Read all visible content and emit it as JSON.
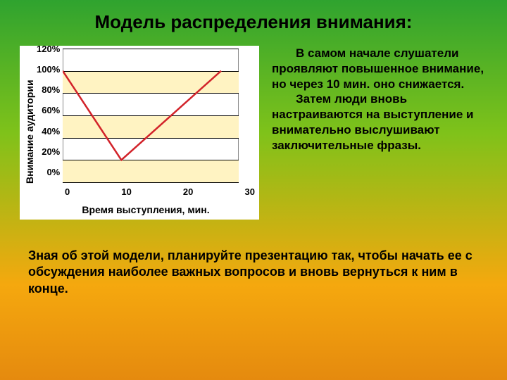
{
  "background": {
    "gradient_stops": [
      "#2fa32f",
      "#7fc21a",
      "#f5a80e",
      "#e58a0e"
    ],
    "gradient_positions": [
      0,
      35,
      75,
      100
    ]
  },
  "title": {
    "text": "Модель распределения внимания:",
    "fontsize": 26
  },
  "chart": {
    "type": "line",
    "ylabel": "Внимание аудитории",
    "xlabel": "Время выступления, мин.",
    "xlim": [
      0,
      30
    ],
    "ylim": [
      0,
      120
    ],
    "xticks": [
      0,
      10,
      20,
      30
    ],
    "yticks": [
      120,
      100,
      80,
      60,
      40,
      20,
      0
    ],
    "ytick_suffix": "%",
    "grid_color": "#000000",
    "band_color": "#fff3c2",
    "background_color": "#ffffff",
    "line_color": "#d2232a",
    "line_width": 2.5,
    "data": {
      "x": [
        0,
        10,
        27
      ],
      "y": [
        100,
        20,
        100
      ]
    },
    "label_fontsize": 14,
    "tick_fontsize": 13
  },
  "paragraph": {
    "fontsize": 17,
    "p1": "В самом начале слушатели проявляют повышенное внимание, но через 10 мин. оно снижается.",
    "p2": "Затем люди вновь настраиваются на выступление и внимательно выслушивают заключительные фразы."
  },
  "bottom": {
    "fontsize": 18,
    "text": "Зная об этой модели, планируйте презентацию так, чтобы начать ее с обсуждения наиболее важных вопросов и вновь вернуться к ним в конце."
  }
}
